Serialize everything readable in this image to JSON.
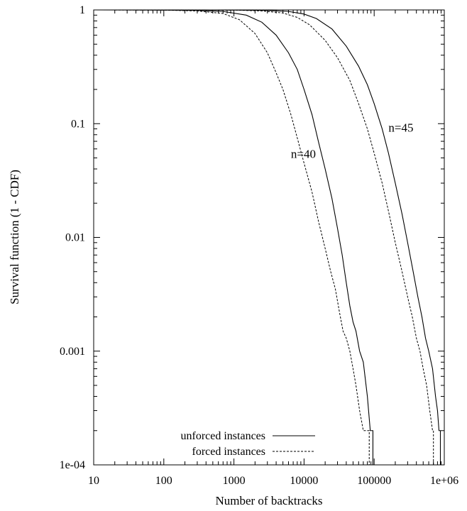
{
  "chart_data": {
    "type": "line",
    "xlabel": "Number of backtracks",
    "ylabel": "Survival function (1 - CDF)",
    "xscale": "log",
    "yscale": "log",
    "xlim": [
      10,
      1000000
    ],
    "ylim": [
      0.0001,
      1
    ],
    "grid": false,
    "legend_position": "bottom-left",
    "x_ticks": [
      10,
      100,
      1000,
      10000,
      100000,
      1000000
    ],
    "x_tick_labels": [
      "10",
      "100",
      "1000",
      "10000",
      "100000",
      "1e+06"
    ],
    "y_ticks": [
      0.0001,
      0.001,
      0.01,
      0.1,
      1
    ],
    "y_tick_labels": [
      "1e-04",
      "0.001",
      "0.01",
      "0.1",
      "1"
    ],
    "legend": [
      {
        "label": "unforced instances",
        "style": "solid"
      },
      {
        "label": "forced instances",
        "style": "dashed"
      }
    ],
    "annotations": [
      {
        "text": "n=45",
        "x": 160000,
        "y": 0.085
      },
      {
        "text": "n=40",
        "x": 6500,
        "y": 0.05
      }
    ],
    "series": [
      {
        "group": "n=40",
        "style": "solid",
        "points": [
          [
            10,
            1
          ],
          [
            100,
            0.998
          ],
          [
            300,
            0.99
          ],
          [
            700,
            0.97
          ],
          [
            1500,
            0.9
          ],
          [
            2500,
            0.78
          ],
          [
            4000,
            0.6
          ],
          [
            6000,
            0.42
          ],
          [
            8000,
            0.3
          ],
          [
            10000,
            0.2
          ],
          [
            13000,
            0.12
          ],
          [
            16000,
            0.07
          ],
          [
            20000,
            0.04
          ],
          [
            25000,
            0.022
          ],
          [
            30000,
            0.012
          ],
          [
            35000,
            0.007
          ],
          [
            40000,
            0.004
          ],
          [
            45000,
            0.0025
          ],
          [
            50000,
            0.0018
          ],
          [
            55000,
            0.0015
          ],
          [
            62000,
            0.001
          ],
          [
            70000,
            0.0008
          ],
          [
            80000,
            0.0004
          ],
          [
            88000,
            0.0002
          ],
          [
            96000,
            0.0002
          ],
          [
            96000,
            0.0001
          ]
        ]
      },
      {
        "group": "n=40",
        "style": "dashed",
        "points": [
          [
            10,
            1
          ],
          [
            100,
            0.997
          ],
          [
            300,
            0.98
          ],
          [
            700,
            0.93
          ],
          [
            1200,
            0.82
          ],
          [
            2000,
            0.62
          ],
          [
            3000,
            0.42
          ],
          [
            4000,
            0.28
          ],
          [
            5000,
            0.2
          ],
          [
            6500,
            0.12
          ],
          [
            8000,
            0.075
          ],
          [
            10000,
            0.045
          ],
          [
            13000,
            0.025
          ],
          [
            16000,
            0.014
          ],
          [
            20000,
            0.008
          ],
          [
            24000,
            0.005
          ],
          [
            28000,
            0.0035
          ],
          [
            32000,
            0.0022
          ],
          [
            36000,
            0.0015
          ],
          [
            40000,
            0.0013
          ],
          [
            45000,
            0.001
          ],
          [
            50000,
            0.0007
          ],
          [
            55000,
            0.0005
          ],
          [
            62000,
            0.0003
          ],
          [
            70000,
            0.0002
          ],
          [
            85000,
            0.0002
          ],
          [
            85000,
            0.0001
          ]
        ]
      },
      {
        "group": "n=45",
        "style": "solid",
        "points": [
          [
            10,
            1
          ],
          [
            1000,
            0.998
          ],
          [
            3000,
            0.99
          ],
          [
            6000,
            0.97
          ],
          [
            10000,
            0.92
          ],
          [
            15000,
            0.84
          ],
          [
            25000,
            0.68
          ],
          [
            40000,
            0.48
          ],
          [
            60000,
            0.32
          ],
          [
            80000,
            0.22
          ],
          [
            100000,
            0.15
          ],
          [
            130000,
            0.09
          ],
          [
            160000,
            0.055
          ],
          [
            200000,
            0.03
          ],
          [
            250000,
            0.016
          ],
          [
            300000,
            0.009
          ],
          [
            360000,
            0.005
          ],
          [
            420000,
            0.003
          ],
          [
            480000,
            0.002
          ],
          [
            540000,
            0.0013
          ],
          [
            600000,
            0.001
          ],
          [
            680000,
            0.0007
          ],
          [
            750000,
            0.0004
          ],
          [
            800000,
            0.0003
          ],
          [
            840000,
            0.0002
          ],
          [
            880000,
            0.0002
          ],
          [
            880000,
            0.0001
          ]
        ]
      },
      {
        "group": "n=45",
        "style": "dashed",
        "points": [
          [
            10,
            1
          ],
          [
            1000,
            0.997
          ],
          [
            2500,
            0.98
          ],
          [
            5000,
            0.94
          ],
          [
            8000,
            0.86
          ],
          [
            12000,
            0.74
          ],
          [
            20000,
            0.54
          ],
          [
            30000,
            0.38
          ],
          [
            45000,
            0.24
          ],
          [
            60000,
            0.15
          ],
          [
            80000,
            0.09
          ],
          [
            100000,
            0.055
          ],
          [
            130000,
            0.03
          ],
          [
            160000,
            0.017
          ],
          [
            200000,
            0.009
          ],
          [
            250000,
            0.005
          ],
          [
            300000,
            0.003
          ],
          [
            350000,
            0.002
          ],
          [
            400000,
            0.0013
          ],
          [
            450000,
            0.001
          ],
          [
            500000,
            0.0007
          ],
          [
            560000,
            0.0005
          ],
          [
            620000,
            0.0003
          ],
          [
            680000,
            0.0002
          ],
          [
            700000,
            0.0002
          ],
          [
            700000,
            0.0001
          ]
        ]
      }
    ]
  }
}
